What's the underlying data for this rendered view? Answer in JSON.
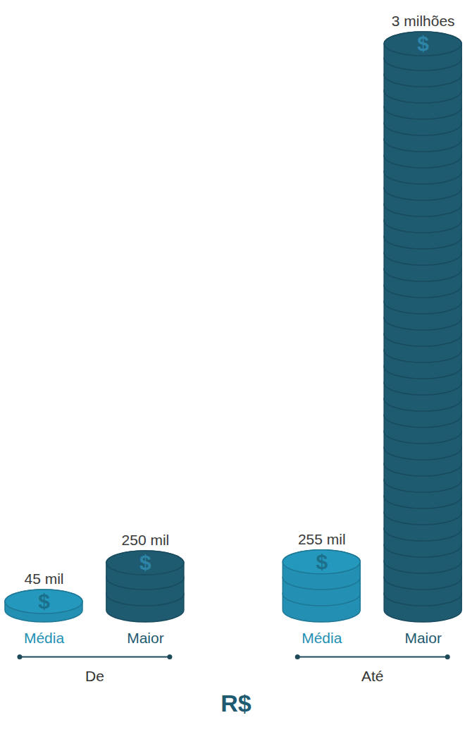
{
  "chart_data": {
    "type": "bar",
    "categories": [
      "Média",
      "Maior",
      "Média",
      "Maior"
    ],
    "groups": [
      "De",
      "De",
      "Até",
      "Até"
    ],
    "values": [
      45000,
      250000,
      255000,
      3000000
    ],
    "value_labels": [
      "45 mil",
      "250 mil",
      "255 mil",
      "3 milhões"
    ],
    "colors": [
      "#2390b3",
      "#1e5a70",
      "#2390b3",
      "#1e5a70"
    ],
    "data_labels": true,
    "tick_labels": "x",
    "ylim": [
      0,
      3000000
    ],
    "caption": "R$",
    "coin_label": "$"
  }
}
